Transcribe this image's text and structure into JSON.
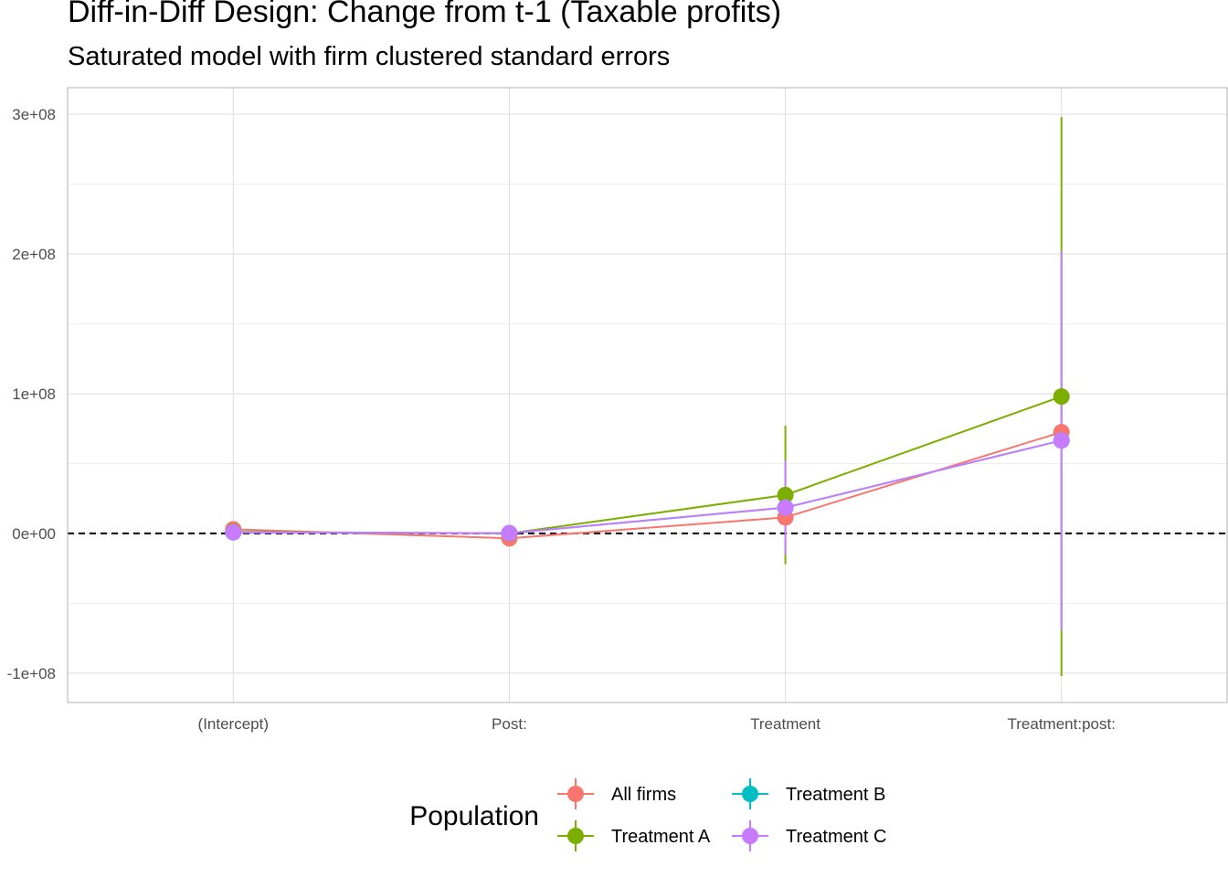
{
  "title": "Diff-in-Diff Design: Change from t-1 (Taxable profits)",
  "subtitle": "Saturated model with firm clustered standard errors",
  "chart_data": {
    "type": "line",
    "title": "Diff-in-Diff Design: Change from t-1 (Taxable profits)",
    "subtitle": "Saturated model with firm clustered standard errors",
    "xlabel": "",
    "ylabel": "",
    "categories": [
      "(Intercept)",
      "Post:",
      "Treatment",
      "Treatment:post:"
    ],
    "y_ticks": [
      -100000000,
      0,
      100000000,
      200000000,
      300000000
    ],
    "y_tick_labels": [
      "-1e+08",
      "0e+00",
      "1e+08",
      "2e+08",
      "3e+08"
    ],
    "ylim": [
      -121000000,
      319000000
    ],
    "reference_line": {
      "y": 0,
      "style": "dashed",
      "color": "#000000"
    },
    "grid": true,
    "legend": {
      "title": "Population",
      "position": "bottom"
    },
    "series": [
      {
        "name": "All firms",
        "color": "#F8766D",
        "values": [
          3000000,
          -3500000,
          11500000,
          72500000
        ],
        "ci_low": [
          3000000,
          -3500000,
          11500000,
          72500000
        ],
        "ci_high": [
          3000000,
          -3500000,
          11500000,
          72500000
        ]
      },
      {
        "name": "Treatment A",
        "color": "#7CAE00",
        "values": [
          1200000,
          0,
          27500000,
          98000000
        ],
        "ci_low": [
          1200000,
          0,
          -22000000,
          -102000000
        ],
        "ci_high": [
          1200000,
          0,
          77000000,
          298000000
        ]
      },
      {
        "name": "Treatment B",
        "color": "#00BFC4",
        "values": [
          800000,
          200000,
          18500000,
          66500000
        ],
        "ci_low": [
          800000,
          200000,
          18500000,
          66500000
        ],
        "ci_high": [
          800000,
          200000,
          18500000,
          66500000
        ]
      },
      {
        "name": "Treatment C",
        "color": "#C77CFF",
        "values": [
          800000,
          200000,
          18500000,
          66500000
        ],
        "ci_low": [
          800000,
          200000,
          -15000000,
          -69000000
        ],
        "ci_high": [
          800000,
          200000,
          52000000,
          202000000
        ]
      }
    ]
  }
}
